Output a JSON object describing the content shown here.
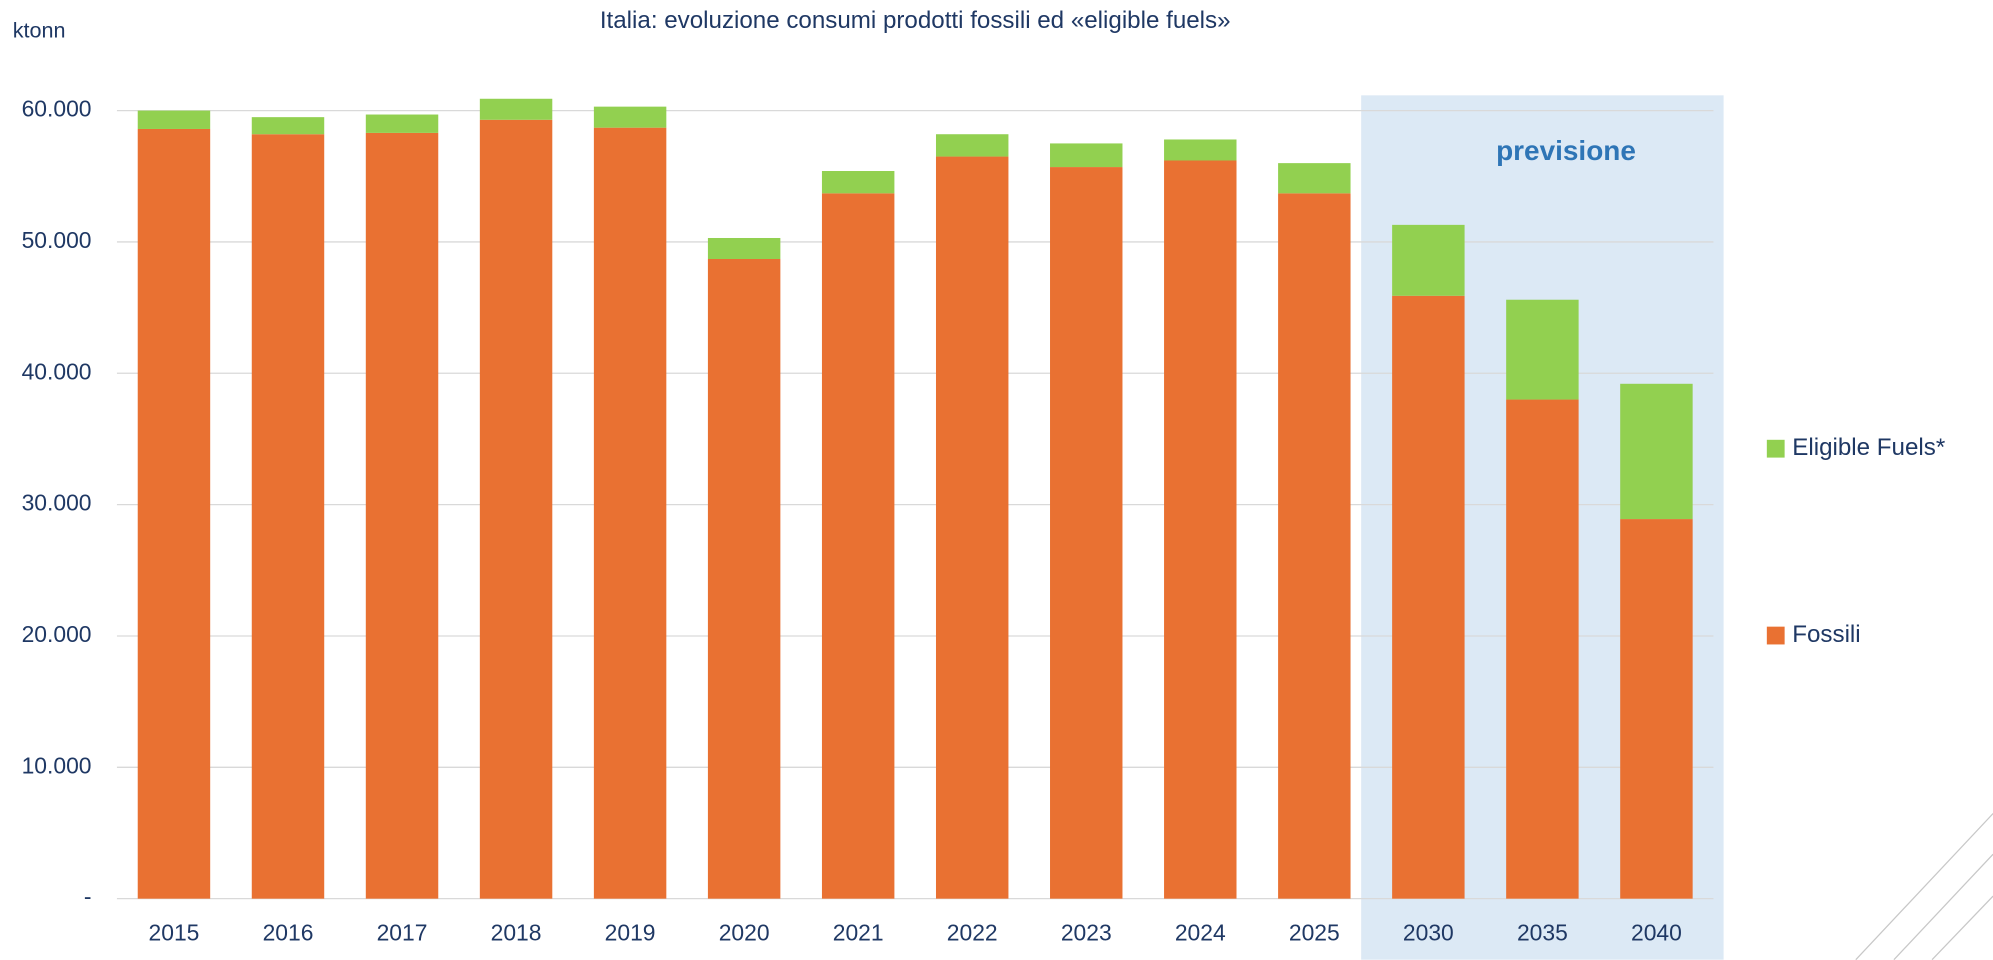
{
  "chart_data": {
    "type": "stacked-bar",
    "title": "Italia: evoluzione consumi prodotti fossili ed «eligible fuels»",
    "y_label": "ktonn",
    "annotation": "previsione",
    "categories": [
      "2015",
      "2016",
      "2017",
      "2018",
      "2019",
      "2020",
      "2021",
      "2022",
      "2023",
      "2024",
      "2025",
      "2030",
      "2035",
      "2040"
    ],
    "series": [
      {
        "name": "Fossili",
        "color": "#E97132",
        "values": [
          58600,
          58200,
          58300,
          59300,
          58700,
          48700,
          53700,
          56500,
          55700,
          56200,
          53700,
          45900,
          38000,
          28900
        ]
      },
      {
        "name": "Eligible Fuels*",
        "color": "#92D050",
        "values": [
          1400,
          1300,
          1400,
          1600,
          1600,
          1600,
          1700,
          1700,
          1800,
          1600,
          2300,
          5400,
          7600,
          10300
        ]
      }
    ],
    "ylim": [
      0,
      60000
    ],
    "yticks": [
      {
        "value": 0,
        "label": "-"
      },
      {
        "value": 10000,
        "label": "10.000"
      },
      {
        "value": 20000,
        "label": "20.000"
      },
      {
        "value": 30000,
        "label": "30.000"
      },
      {
        "value": 40000,
        "label": "40.000"
      },
      {
        "value": 50000,
        "label": "50.000"
      },
      {
        "value": 60000,
        "label": "60.000"
      }
    ],
    "grid": true,
    "legend": "right"
  }
}
